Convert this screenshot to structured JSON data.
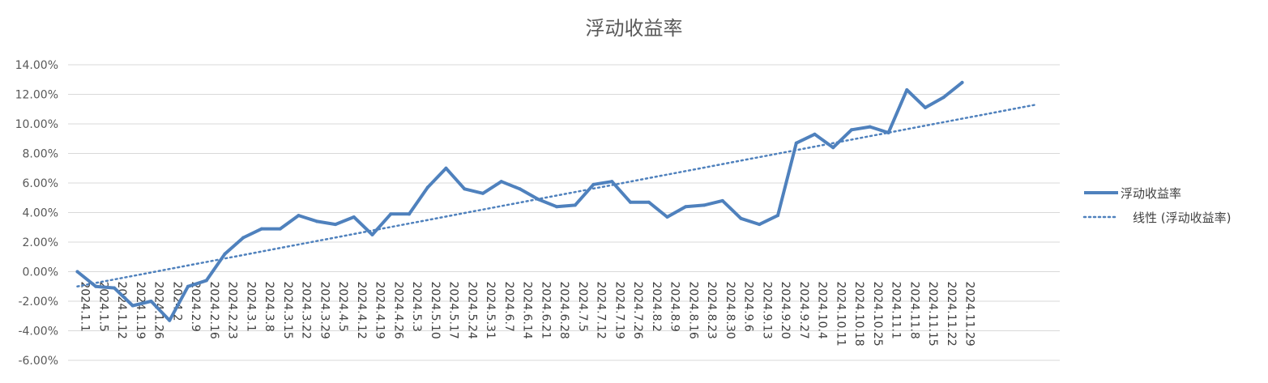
{
  "chart_data": {
    "type": "line",
    "title": "浮动收益率",
    "xlabel": "",
    "ylabel": "",
    "ylim": [
      -0.06,
      0.14
    ],
    "yticks": [
      "-6.00%",
      "-4.00%",
      "-2.00%",
      "0.00%",
      "2.00%",
      "4.00%",
      "6.00%",
      "8.00%",
      "10.00%",
      "12.00%",
      "14.00%"
    ],
    "grid": true,
    "legend_position": "right",
    "categories": [
      "2024.1.1",
      "2024.1.5",
      "2024.1.12",
      "2024.1.19",
      "2024.1.26",
      "2024.2",
      "2024.2.9",
      "2024.2.16",
      "2024.2.23",
      "2024.3.1",
      "2024.3.8",
      "2024.3.15",
      "2024.3.22",
      "2024.3.29",
      "2024.4.5",
      "2024.4.12",
      "2024.4.19",
      "2024.4.26",
      "2024.5.3",
      "2024.5.10",
      "2024.5.17",
      "2024.5.24",
      "2024.5.31",
      "2024.6.7",
      "2024.6.14",
      "2024.6.21",
      "2024.6.28",
      "2024.7.5",
      "2024.7.12",
      "2024.7.19",
      "2024.7.26",
      "2024.8.2",
      "2024.8.9",
      "2024.8.16",
      "2024.8.23",
      "2024.8.30",
      "2024.9.6",
      "2024.9.13",
      "2024.9.20",
      "2024.9.27",
      "2024.10.4",
      "2024.10.11",
      "2024.10.18",
      "2024.10.25",
      "2024.11.1",
      "2024.11.8",
      "2024.11.15",
      "2024.11.22",
      "2024.11.29"
    ],
    "series": [
      {
        "name": "浮动收益率",
        "style": "solid",
        "color": "#4F81BD",
        "values": [
          0.0,
          -1.0,
          -1.1,
          -2.3,
          -2.0,
          -3.3,
          -1.0,
          -0.6,
          1.2,
          2.3,
          2.9,
          2.9,
          3.8,
          3.4,
          3.2,
          3.7,
          2.5,
          3.9,
          3.9,
          5.7,
          7.0,
          5.6,
          5.3,
          6.1,
          5.6,
          4.9,
          4.4,
          4.5,
          5.9,
          6.1,
          4.7,
          4.7,
          3.7,
          4.4,
          4.5,
          4.8,
          3.6,
          3.2,
          3.8,
          8.7,
          9.3,
          8.4,
          9.6,
          9.8,
          9.4,
          12.3,
          11.1,
          11.8,
          12.8
        ]
      },
      {
        "name": "线性 (浮动收益率)",
        "style": "dotted",
        "color": "#4F81BD",
        "trend_start": -1.0,
        "trend_end": 11.3,
        "trend_periods": 53
      }
    ]
  }
}
